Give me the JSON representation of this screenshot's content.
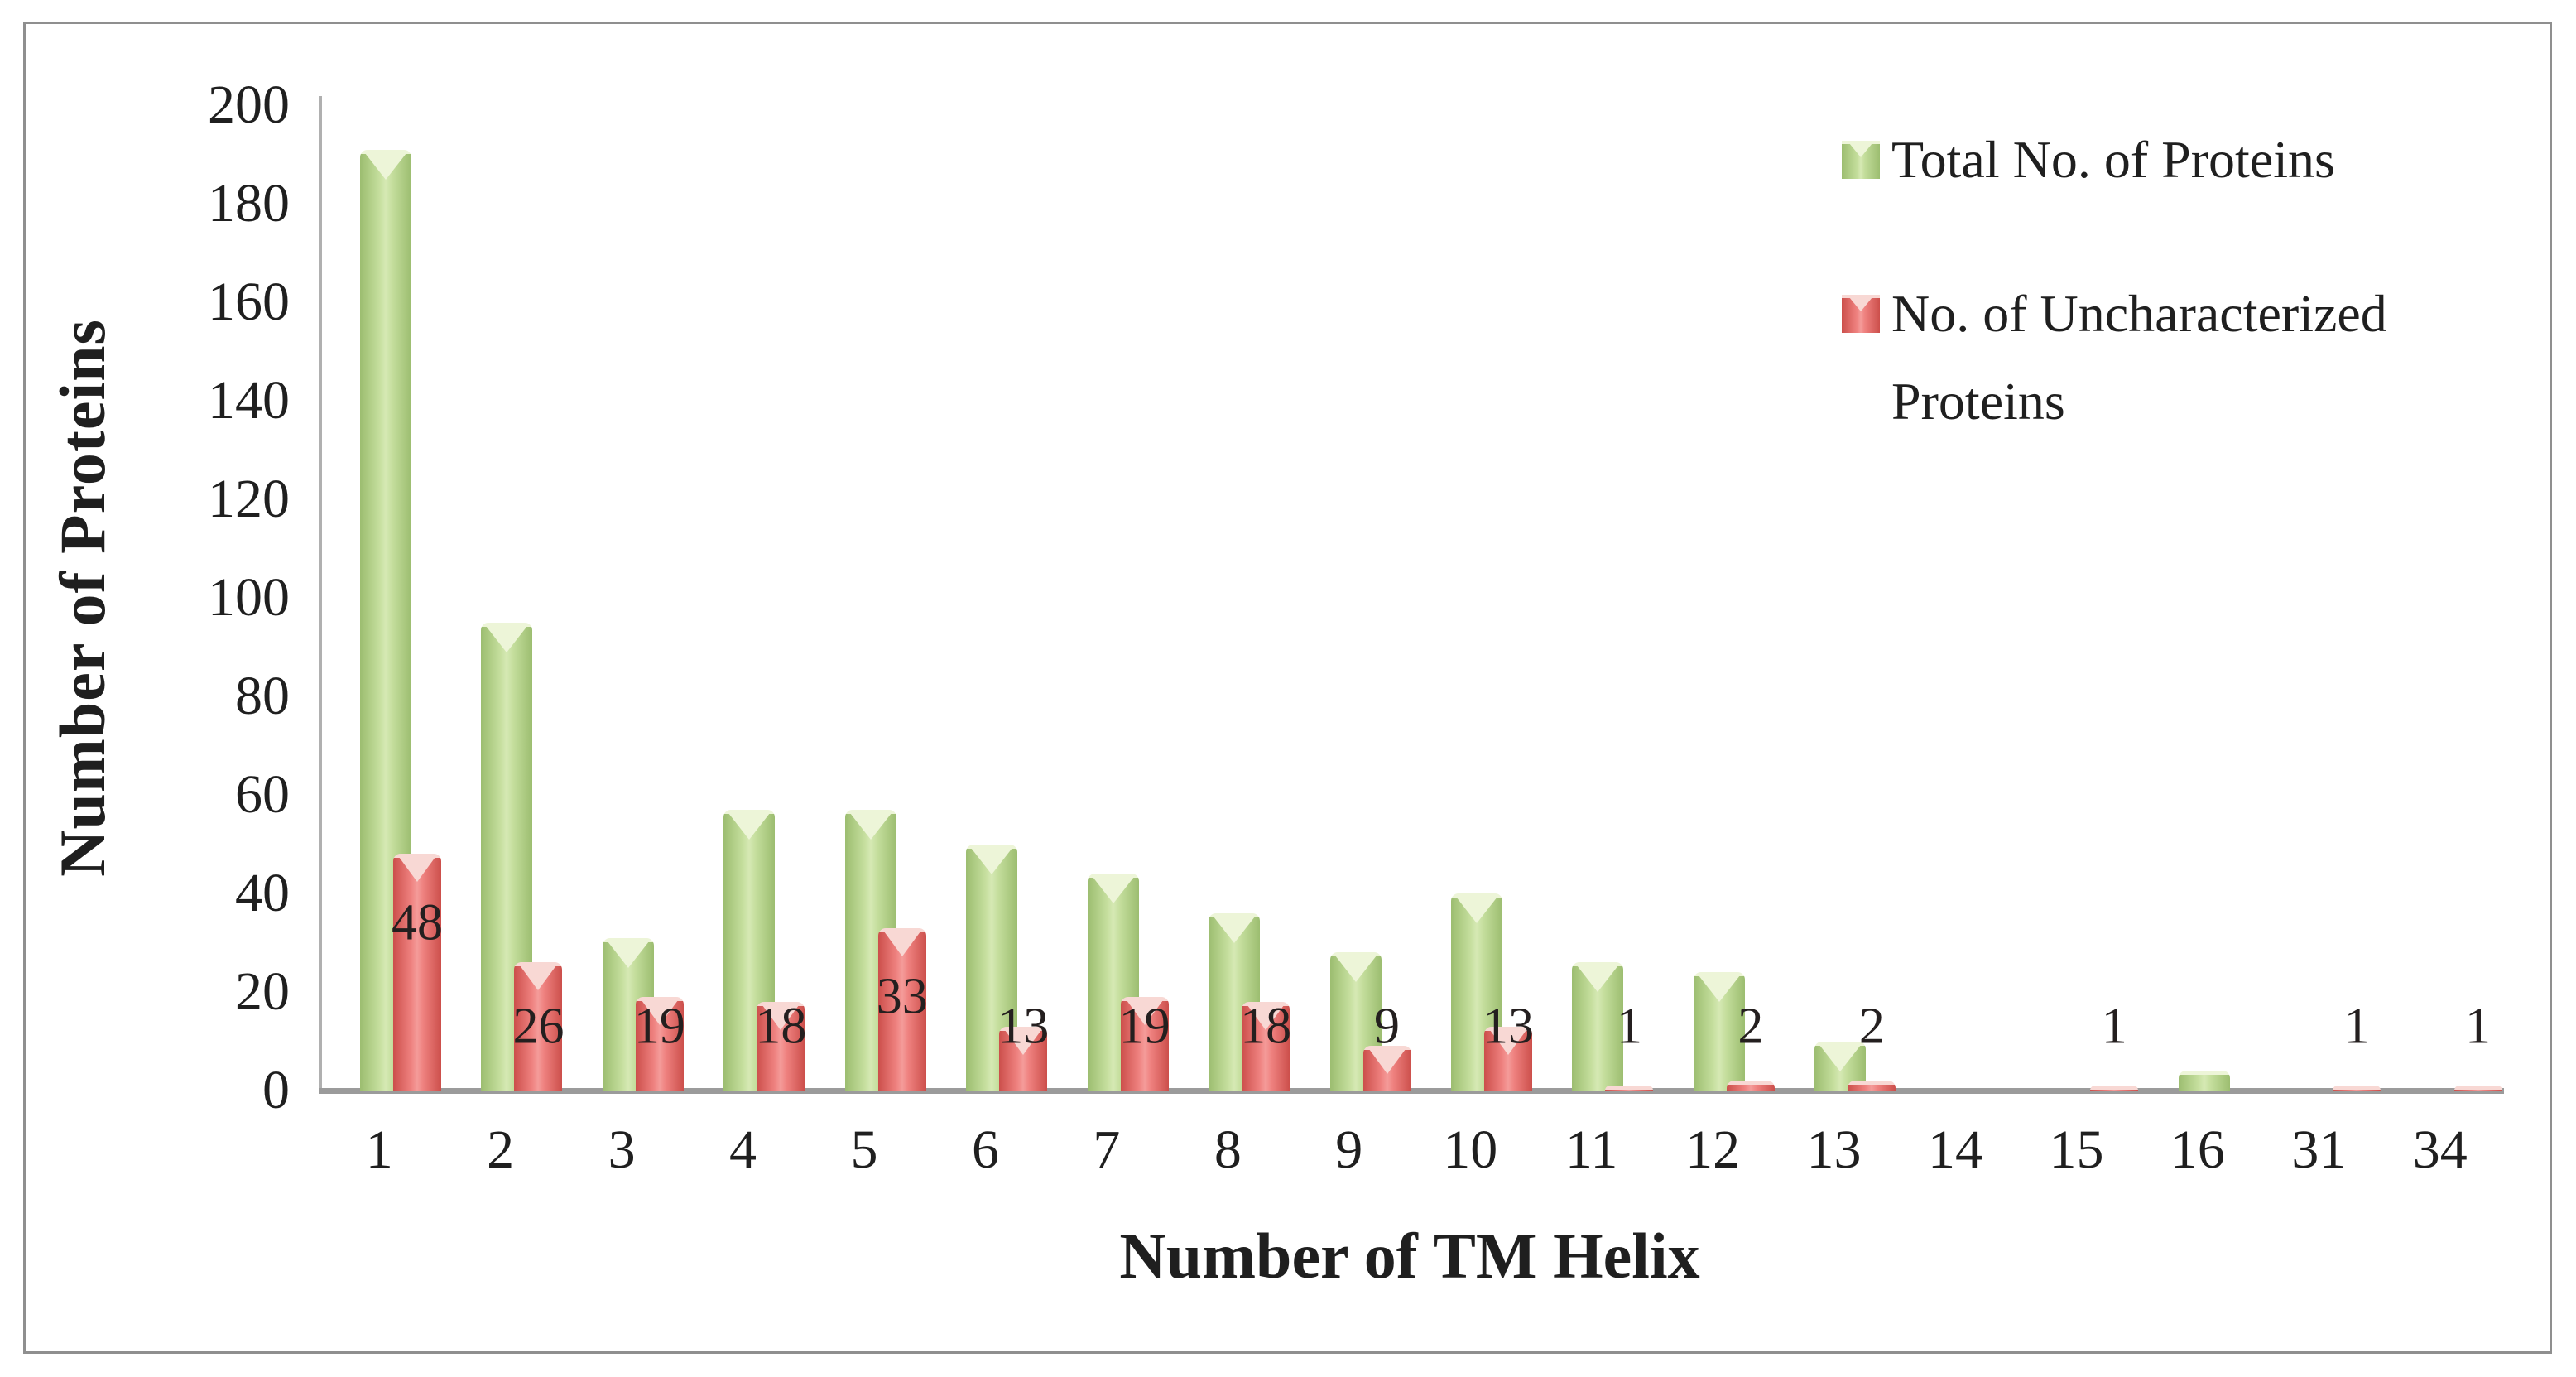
{
  "chart_data": {
    "type": "bar",
    "title": "",
    "xlabel": "Number of TM Helix",
    "ylabel": "Number of Proteins",
    "categories": [
      "1",
      "2",
      "3",
      "4",
      "5",
      "6",
      "7",
      "8",
      "9",
      "10",
      "11",
      "12",
      "13",
      "14",
      "15",
      "16",
      "31",
      "34"
    ],
    "series": [
      {
        "name": "Total No. of Proteins",
        "color": "#b9d797",
        "values": [
          191,
          95,
          31,
          57,
          57,
          50,
          44,
          36,
          28,
          40,
          26,
          24,
          10,
          0,
          0,
          4,
          0,
          0
        ],
        "data_labels_shown": false
      },
      {
        "name": "No. of Uncharacterized Proteins",
        "color": "#ee7f7c",
        "values": [
          48,
          26,
          19,
          18,
          33,
          13,
          19,
          18,
          9,
          13,
          1,
          2,
          2,
          0,
          1,
          0,
          1,
          1
        ],
        "data_labels_shown": true,
        "data_labels": [
          "48",
          "26",
          "19",
          "18",
          "33",
          "13",
          "19",
          "18",
          "9",
          "13",
          "1",
          "2",
          "2",
          "",
          "1",
          "",
          "1",
          "1"
        ]
      }
    ],
    "ylim": [
      0,
      200
    ],
    "yticks": [
      0,
      20,
      40,
      60,
      80,
      100,
      120,
      140,
      160,
      180,
      200
    ],
    "grid": false,
    "legend_position": "top-right",
    "colors": {
      "green_bar_edge": "#9cbd70",
      "green_bar_center": "#d6e9b4",
      "red_bar_edge": "#cc4f4b",
      "red_bar_center": "#f49c9a",
      "axis_line": "#9b9b9b",
      "text": "#1f1f1f",
      "frame_border": "#8f8f8f",
      "data_label_text": "#241f1f"
    }
  }
}
